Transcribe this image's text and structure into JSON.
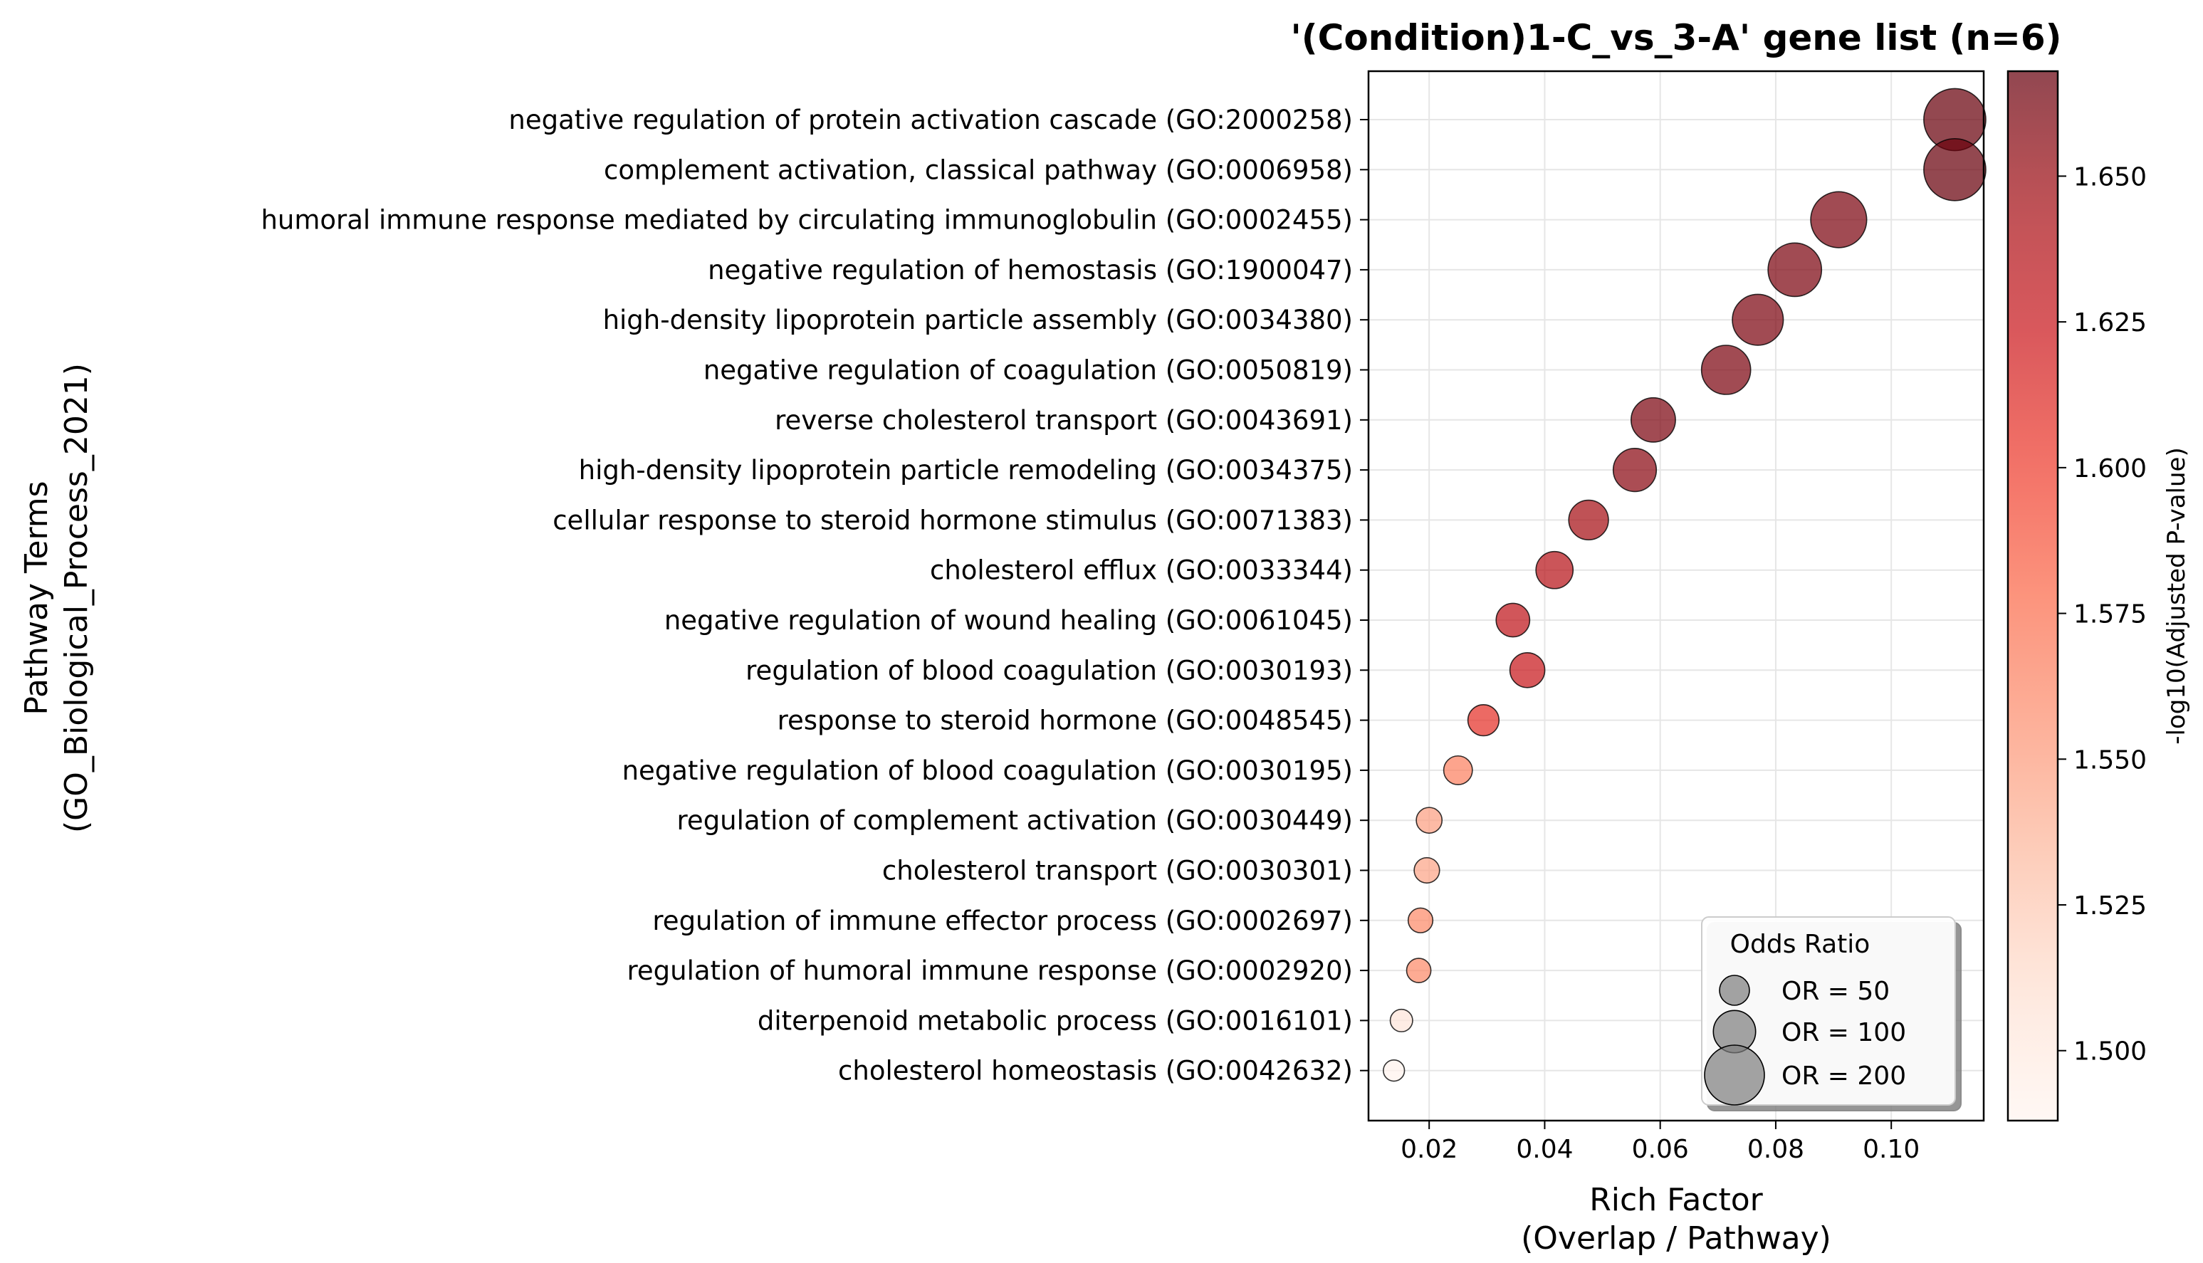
{
  "chart_data": {
    "type": "scatter",
    "title": "'(Condition)1-C_vs_3-A' gene list (n=6)",
    "xlabel": "Rich Factor",
    "xlabel_line2": "(Overlap / Pathway)",
    "ylabel": "Pathway Terms",
    "ylabel_line2": "(GO_Biological_Process_2021)",
    "xlim": [
      0.0095,
      0.116
    ],
    "xticks": [
      0.02,
      0.04,
      0.06,
      0.08,
      0.1
    ],
    "xtick_labels": [
      "0.02",
      "0.04",
      "0.06",
      "0.08",
      "0.10"
    ],
    "grid": true,
    "colormap": "Reds",
    "colorbar": {
      "label": "-log10(Adjusted P-value)",
      "range": [
        1.488,
        1.668
      ],
      "ticks": [
        1.5,
        1.525,
        1.55,
        1.575,
        1.6,
        1.625,
        1.65
      ],
      "tick_labels": [
        "1.500",
        "1.525",
        "1.550",
        "1.575",
        "1.600",
        "1.625",
        "1.650"
      ]
    },
    "size_legend": {
      "title": "Odds Ratio",
      "placement": "lower-right",
      "entries": [
        {
          "label": "OR = 50",
          "value": 50
        },
        {
          "label": "OR = 100",
          "value": 100
        },
        {
          "label": "OR = 200",
          "value": 200
        }
      ]
    },
    "points": [
      {
        "term": "negative regulation of protein activation cascade (GO:2000258)",
        "rich_factor": 0.111,
        "neg_log10_padj": 1.667,
        "odds_ratio": 215
      },
      {
        "term": "complement activation, classical pathway (GO:0006958)",
        "rich_factor": 0.111,
        "neg_log10_padj": 1.667,
        "odds_ratio": 215
      },
      {
        "term": "humoral immune response mediated by circulating immunoglobulin (GO:0002455)",
        "rich_factor": 0.0909,
        "neg_log10_padj": 1.66,
        "odds_ratio": 175
      },
      {
        "term": "negative regulation of hemostasis (GO:1900047)",
        "rich_factor": 0.0833,
        "neg_log10_padj": 1.66,
        "odds_ratio": 160
      },
      {
        "term": "high-density lipoprotein particle assembly (GO:0034380)",
        "rich_factor": 0.0769,
        "neg_log10_padj": 1.66,
        "odds_ratio": 145
      },
      {
        "term": "negative regulation of coagulation (GO:0050819)",
        "rich_factor": 0.0714,
        "neg_log10_padj": 1.66,
        "odds_ratio": 135
      },
      {
        "term": "reverse cholesterol transport (GO:0043691)",
        "rich_factor": 0.0588,
        "neg_log10_padj": 1.66,
        "odds_ratio": 110
      },
      {
        "term": "high-density lipoprotein particle remodeling (GO:0034375)",
        "rich_factor": 0.0556,
        "neg_log10_padj": 1.655,
        "odds_ratio": 104
      },
      {
        "term": "cellular response to steroid hormone stimulus (GO:0071383)",
        "rich_factor": 0.0476,
        "neg_log10_padj": 1.645,
        "odds_ratio": 88
      },
      {
        "term": "cholesterol efflux (GO:0033344)",
        "rich_factor": 0.0417,
        "neg_log10_padj": 1.635,
        "odds_ratio": 77
      },
      {
        "term": "negative regulation of wound healing (GO:0061045)",
        "rich_factor": 0.0345,
        "neg_log10_padj": 1.63,
        "odds_ratio": 63
      },
      {
        "term": "regulation of blood coagulation (GO:0030193)",
        "rich_factor": 0.037,
        "neg_log10_padj": 1.625,
        "odds_ratio": 68
      },
      {
        "term": "response to steroid hormone (GO:0048545)",
        "rich_factor": 0.0294,
        "neg_log10_padj": 1.607,
        "odds_ratio": 54
      },
      {
        "term": "negative regulation of blood coagulation (GO:0030195)",
        "rich_factor": 0.025,
        "neg_log10_padj": 1.565,
        "odds_ratio": 46
      },
      {
        "term": "regulation of complement activation (GO:0030449)",
        "rich_factor": 0.02,
        "neg_log10_padj": 1.548,
        "odds_ratio": 37
      },
      {
        "term": "cholesterol transport (GO:0030301)",
        "rich_factor": 0.0196,
        "neg_log10_padj": 1.545,
        "odds_ratio": 36
      },
      {
        "term": "regulation of immune effector process (GO:0002697)",
        "rich_factor": 0.0185,
        "neg_log10_padj": 1.56,
        "odds_ratio": 34
      },
      {
        "term": "regulation of humoral immune response (GO:0002920)",
        "rich_factor": 0.0182,
        "neg_log10_padj": 1.56,
        "odds_ratio": 33
      },
      {
        "term": "diterpenoid metabolic process (GO:0016101)",
        "rich_factor": 0.0152,
        "neg_log10_padj": 1.505,
        "odds_ratio": 28
      },
      {
        "term": "cholesterol homeostasis (GO:0042632)",
        "rich_factor": 0.0139,
        "neg_log10_padj": 1.49,
        "odds_ratio": 25
      }
    ]
  }
}
